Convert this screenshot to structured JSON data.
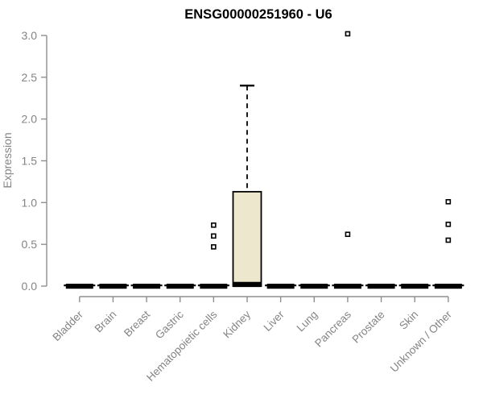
{
  "chart_data": {
    "type": "boxplot",
    "title": "ENSG00000251960 - U6",
    "ylabel": "Expression",
    "xlabel": "",
    "ylim": [
      0.0,
      3.0
    ],
    "yticks": [
      0.0,
      0.5,
      1.0,
      1.5,
      2.0,
      2.5,
      3.0
    ],
    "grid": false,
    "legend": null,
    "categories": [
      "Bladder",
      "Brain",
      "Breast",
      "Gastric",
      "Hematopoietic cells",
      "Kidney",
      "Liver",
      "Lung",
      "Pancreas",
      "Prostate",
      "Skin",
      "Unknown / Other"
    ],
    "series": [
      {
        "category": "Bladder",
        "q1": 0.0,
        "median": 0.02,
        "q3": 0.02,
        "whisker_low": 0.0,
        "whisker_high": 0.02,
        "outliers": [],
        "flat": true
      },
      {
        "category": "Brain",
        "q1": 0.0,
        "median": 0.02,
        "q3": 0.02,
        "whisker_low": 0.0,
        "whisker_high": 0.02,
        "outliers": [],
        "flat": true
      },
      {
        "category": "Breast",
        "q1": 0.0,
        "median": 0.02,
        "q3": 0.02,
        "whisker_low": 0.0,
        "whisker_high": 0.02,
        "outliers": [],
        "flat": true
      },
      {
        "category": "Gastric",
        "q1": 0.0,
        "median": 0.02,
        "q3": 0.02,
        "whisker_low": 0.0,
        "whisker_high": 0.02,
        "outliers": [],
        "flat": true
      },
      {
        "category": "Hematopoietic cells",
        "q1": 0.0,
        "median": 0.02,
        "q3": 0.02,
        "whisker_low": 0.0,
        "whisker_high": 0.02,
        "outliers": [
          0.47,
          0.6,
          0.73
        ],
        "flat": true
      },
      {
        "category": "Kidney",
        "q1": 0.0,
        "median": 0.02,
        "q3": 1.13,
        "whisker_low": 0.0,
        "whisker_high": 2.4,
        "outliers": [],
        "flat": false
      },
      {
        "category": "Liver",
        "q1": 0.0,
        "median": 0.02,
        "q3": 0.02,
        "whisker_low": 0.0,
        "whisker_high": 0.02,
        "outliers": [],
        "flat": true
      },
      {
        "category": "Lung",
        "q1": 0.0,
        "median": 0.02,
        "q3": 0.02,
        "whisker_low": 0.0,
        "whisker_high": 0.02,
        "outliers": [],
        "flat": true
      },
      {
        "category": "Pancreas",
        "q1": 0.0,
        "median": 0.02,
        "q3": 0.02,
        "whisker_low": 0.0,
        "whisker_high": 0.02,
        "outliers": [
          0.62,
          3.02
        ],
        "flat": true
      },
      {
        "category": "Prostate",
        "q1": 0.0,
        "median": 0.02,
        "q3": 0.02,
        "whisker_low": 0.0,
        "whisker_high": 0.02,
        "outliers": [],
        "flat": true
      },
      {
        "category": "Skin",
        "q1": 0.0,
        "median": 0.02,
        "q3": 0.02,
        "whisker_low": 0.0,
        "whisker_high": 0.02,
        "outliers": [],
        "flat": true
      },
      {
        "category": "Unknown / Other",
        "q1": 0.0,
        "median": 0.02,
        "q3": 0.02,
        "whisker_low": 0.0,
        "whisker_high": 0.02,
        "outliers": [
          0.55,
          0.74,
          1.01
        ],
        "flat": true
      }
    ],
    "colors": {
      "background": "#FFFFFF",
      "title": "#000000",
      "box_fill": "#ECE7CD",
      "box_stroke": "#000000",
      "flat_bar": "#000000",
      "median": "#000000",
      "whisker": "#000000",
      "outlier_fill": "#FFFFFF",
      "outlier_stroke": "#000000",
      "axis_line": "#8F8F8F",
      "tick_label": "#848484",
      "axis_label": "#848484"
    }
  }
}
